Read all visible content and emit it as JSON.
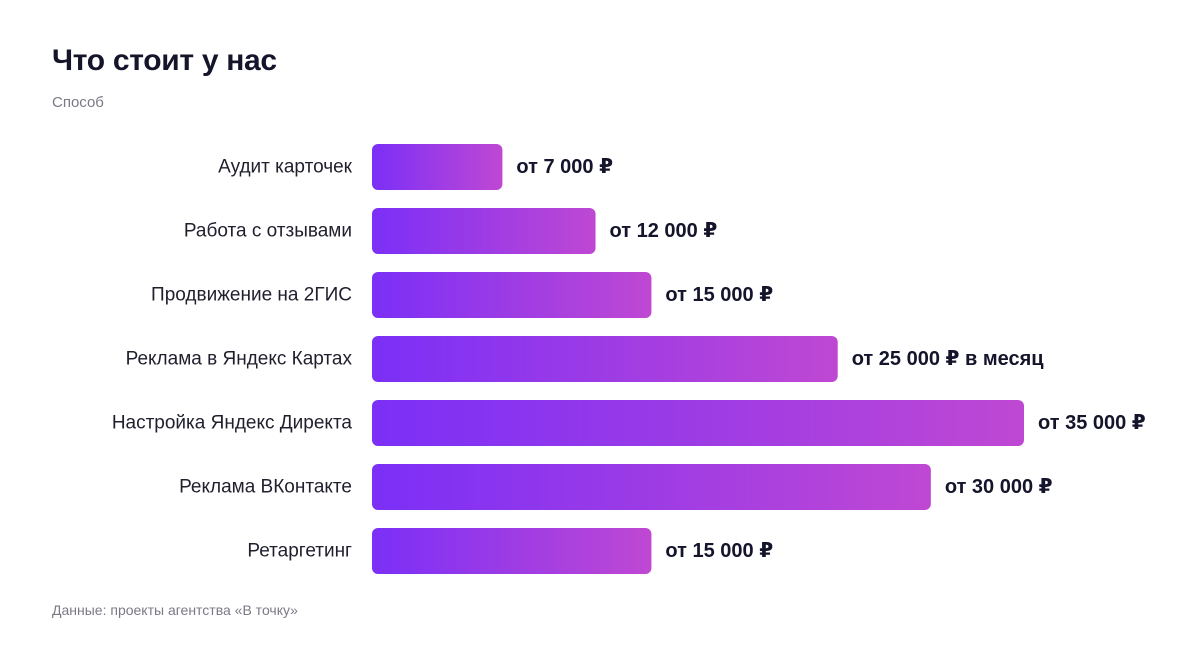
{
  "header": {
    "title": "Что стоит у нас",
    "subtitle": "Способ"
  },
  "footer": {
    "source": "Данные: проекты агентства «В точку»"
  },
  "colors": {
    "bar_start": "#7b2ff7",
    "bar_end": "#bf48d3",
    "text": "#14142b",
    "muted": "#7a7a86"
  },
  "chart_data": {
    "type": "bar",
    "orientation": "horizontal",
    "title": "Что стоит у нас",
    "subtitle": "Способ",
    "categories": [
      "Аудит карточек",
      "Работа с отзывами",
      "Продвижение на 2ГИС",
      "Реклама в Яндекс Картах",
      "Настройка Яндекс Директа",
      "Реклама ВКонтакте",
      "Ретаргетинг"
    ],
    "values": [
      7000,
      12000,
      15000,
      25000,
      35000,
      30000,
      15000
    ],
    "value_labels": [
      "от 7 000 ₽",
      "от 12 000 ₽",
      "от 15 000 ₽",
      "от 25 000 ₽ в месяц",
      "от 35 000 ₽",
      "от 30 000 ₽",
      "от 15 000 ₽"
    ],
    "xlim": [
      0,
      35000
    ],
    "grid": false,
    "legend": "none"
  }
}
